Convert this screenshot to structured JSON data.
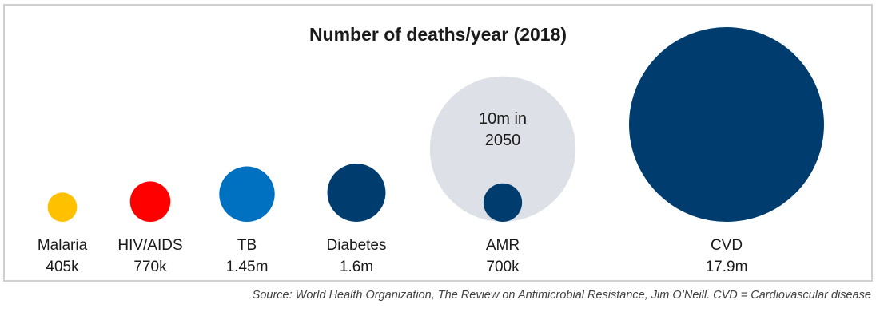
{
  "chart_data": {
    "type": "bubble",
    "title": "Number of deaths/year (2018)",
    "source": "Source: World Health Organization, The Review on Antimicrobial Resistance, Jim O’Neill. CVD = Cardiovascular disease",
    "categories": [
      "Malaria",
      "HIV/AIDS",
      "TB",
      "Diabetes",
      "AMR",
      "CVD"
    ],
    "values": [
      405000,
      770000,
      1450000,
      1600000,
      700000,
      17900000
    ],
    "value_labels": [
      "405k",
      "770k",
      "1.45m",
      "1.6m",
      "700k",
      "17.9m"
    ],
    "colors": [
      "#FFC000",
      "#FF0000",
      "#0070C0",
      "#003D6E",
      "#003D6E",
      "#003D6E"
    ],
    "projection": {
      "category": "AMR",
      "value": 10000000,
      "label_lines": [
        "10m in",
        "2050"
      ],
      "color": "#DDE0E7"
    }
  }
}
